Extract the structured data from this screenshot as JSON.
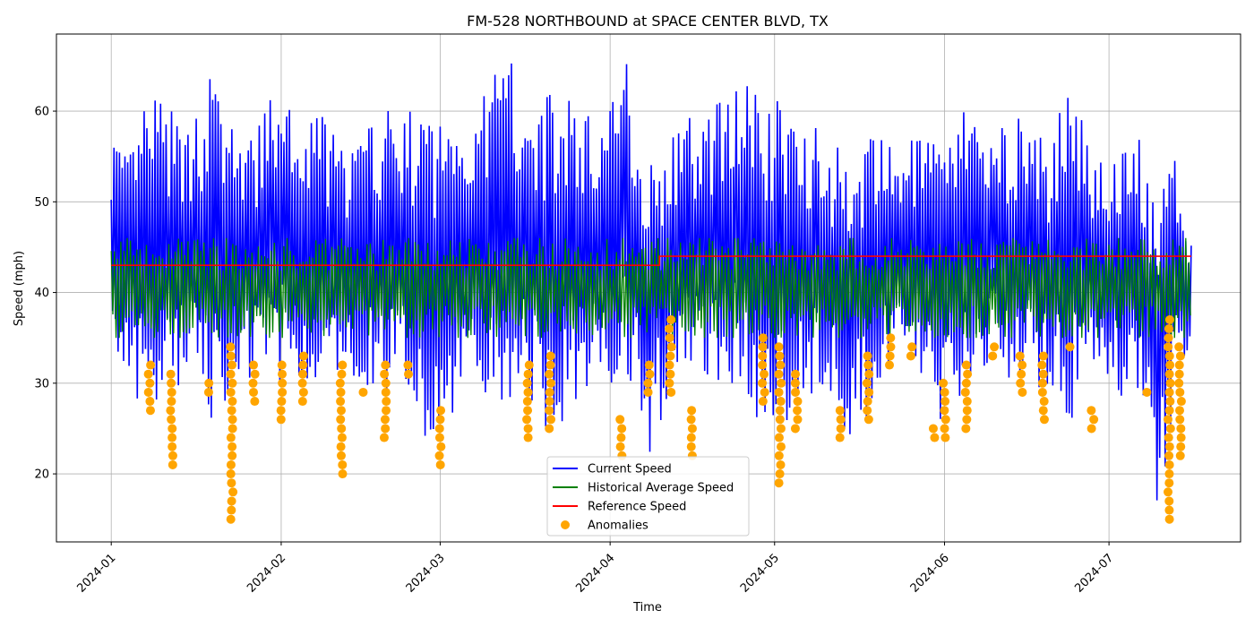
{
  "chart_data": {
    "type": "line",
    "title": "FM-528 NORTHBOUND at SPACE CENTER BLVD, TX",
    "xlabel": "Time",
    "ylabel": "Speed (mph)",
    "xlim": [
      "2023-12-22",
      "2024-07-25"
    ],
    "ylim": [
      12.5,
      68.5
    ],
    "grid": true,
    "legend_position": "lower-center",
    "x_ticks": [
      "2024-01",
      "2024-02",
      "2024-03",
      "2024-04",
      "2024-05",
      "2024-06",
      "2024-07"
    ],
    "y_ticks": [
      20,
      30,
      40,
      50,
      60
    ],
    "colors": {
      "current": "#0000ff",
      "historical": "#008000",
      "reference": "#ff0000",
      "anomalies": "#ffa500"
    },
    "series": [
      {
        "name": "Current Speed",
        "style": "line",
        "x": [
          "2024-01-01",
          "2024-01-04",
          "2024-01-08",
          "2024-01-12",
          "2024-01-16",
          "2024-01-19",
          "2024-01-23",
          "2024-01-27",
          "2024-02-01",
          "2024-02-04",
          "2024-02-08",
          "2024-02-12",
          "2024-02-16",
          "2024-02-20",
          "2024-02-24",
          "2024-03-01",
          "2024-03-05",
          "2024-03-09",
          "2024-03-13",
          "2024-03-17",
          "2024-03-21",
          "2024-03-25",
          "2024-04-01",
          "2024-04-04",
          "2024-04-08",
          "2024-04-12",
          "2024-04-16",
          "2024-04-20",
          "2024-04-24",
          "2024-04-29",
          "2024-05-02",
          "2024-05-06",
          "2024-05-10",
          "2024-05-14",
          "2024-05-18",
          "2024-05-22",
          "2024-05-26",
          "2024-06-01",
          "2024-06-04",
          "2024-06-08",
          "2024-06-12",
          "2024-06-16",
          "2024-06-20",
          "2024-06-24",
          "2024-06-28",
          "2024-07-02",
          "2024-07-06",
          "2024-07-10",
          "2024-07-13",
          "2024-07-16"
        ],
        "min": [
          32,
          29,
          26,
          28,
          30,
          26,
          29,
          30,
          30,
          31,
          29,
          30,
          30,
          29,
          28,
          21,
          30,
          29,
          28,
          29,
          23,
          28,
          30,
          31,
          22,
          29,
          30,
          29,
          30,
          25,
          25,
          28,
          30,
          24,
          26,
          31,
          32,
          24,
          28,
          32,
          31,
          29,
          30,
          26,
          29,
          28,
          30,
          15,
          29,
          34
        ],
        "max": [
          59,
          55,
          63,
          60,
          58,
          65,
          58,
          57,
          64,
          57,
          61,
          56,
          58,
          60,
          60,
          60,
          61,
          62,
          66,
          63,
          62,
          61,
          60,
          66,
          55,
          57,
          60,
          60,
          66,
          60,
          62,
          60,
          57,
          56,
          57,
          57,
          57,
          56,
          60,
          59,
          58,
          61,
          55,
          65,
          57,
          56,
          58,
          50,
          55,
          46
        ]
      },
      {
        "name": "Historical Average Speed",
        "style": "line",
        "x": [
          "2024-01-01",
          "2024-01-16",
          "2024-02-01",
          "2024-02-16",
          "2024-03-01",
          "2024-03-16",
          "2024-04-01",
          "2024-04-16",
          "2024-05-01",
          "2024-05-16",
          "2024-06-01",
          "2024-06-16",
          "2024-07-01",
          "2024-07-16"
        ],
        "min": [
          35,
          35,
          35,
          35,
          35,
          35,
          35,
          35,
          35,
          35,
          35,
          35,
          35,
          35
        ],
        "max": [
          46,
          46,
          46,
          46,
          46,
          46,
          46,
          46,
          46,
          46,
          46,
          46,
          46,
          46
        ]
      },
      {
        "name": "Reference Speed",
        "style": "step",
        "x": [
          "2024-01-01",
          "2024-04-10",
          "2024-04-10",
          "2024-07-16"
        ],
        "y": [
          43,
          43,
          44,
          44
        ]
      },
      {
        "name": "Anomalies",
        "style": "scatter",
        "points": [
          {
            "x": "2024-01-08",
            "ymin": 27,
            "ymax": 32
          },
          {
            "x": "2024-01-12",
            "ymin": 21,
            "ymax": 31
          },
          {
            "x": "2024-01-19",
            "ymin": 29,
            "ymax": 30
          },
          {
            "x": "2024-01-23",
            "ymin": 15,
            "ymax": 34
          },
          {
            "x": "2024-01-27",
            "ymin": 28,
            "ymax": 32
          },
          {
            "x": "2024-02-01",
            "ymin": 26,
            "ymax": 32
          },
          {
            "x": "2024-02-05",
            "ymin": 28,
            "ymax": 33
          },
          {
            "x": "2024-02-12",
            "ymin": 20,
            "ymax": 32
          },
          {
            "x": "2024-02-16",
            "ymin": 29,
            "ymax": 29
          },
          {
            "x": "2024-02-20",
            "ymin": 24,
            "ymax": 32
          },
          {
            "x": "2024-02-24",
            "ymin": 31,
            "ymax": 32
          },
          {
            "x": "2024-03-01",
            "ymin": 21,
            "ymax": 27
          },
          {
            "x": "2024-03-17",
            "ymin": 24,
            "ymax": 32
          },
          {
            "x": "2024-03-21",
            "ymin": 25,
            "ymax": 33
          },
          {
            "x": "2024-04-03",
            "ymin": 22,
            "ymax": 26
          },
          {
            "x": "2024-04-08",
            "ymin": 29,
            "ymax": 32
          },
          {
            "x": "2024-04-12",
            "ymin": 29,
            "ymax": 37
          },
          {
            "x": "2024-04-16",
            "ymin": 22,
            "ymax": 27
          },
          {
            "x": "2024-04-29",
            "ymin": 28,
            "ymax": 35
          },
          {
            "x": "2024-05-02",
            "ymin": 19,
            "ymax": 34
          },
          {
            "x": "2024-05-05",
            "ymin": 25,
            "ymax": 31
          },
          {
            "x": "2024-05-13",
            "ymin": 24,
            "ymax": 27
          },
          {
            "x": "2024-05-18",
            "ymin": 26,
            "ymax": 33
          },
          {
            "x": "2024-05-22",
            "ymin": 32,
            "ymax": 35
          },
          {
            "x": "2024-05-26",
            "ymin": 33,
            "ymax": 34
          },
          {
            "x": "2024-05-30",
            "ymin": 24,
            "ymax": 25
          },
          {
            "x": "2024-06-01",
            "ymin": 24,
            "ymax": 30
          },
          {
            "x": "2024-06-05",
            "ymin": 25,
            "ymax": 32
          },
          {
            "x": "2024-06-10",
            "ymin": 33,
            "ymax": 34
          },
          {
            "x": "2024-06-15",
            "ymin": 29,
            "ymax": 33
          },
          {
            "x": "2024-06-19",
            "ymin": 26,
            "ymax": 33
          },
          {
            "x": "2024-06-24",
            "ymin": 34,
            "ymax": 34
          },
          {
            "x": "2024-06-28",
            "ymin": 25,
            "ymax": 27
          },
          {
            "x": "2024-07-08",
            "ymin": 29,
            "ymax": 29
          },
          {
            "x": "2024-07-12",
            "ymin": 15,
            "ymax": 37
          },
          {
            "x": "2024-07-14",
            "ymin": 22,
            "ymax": 34
          }
        ]
      }
    ]
  }
}
